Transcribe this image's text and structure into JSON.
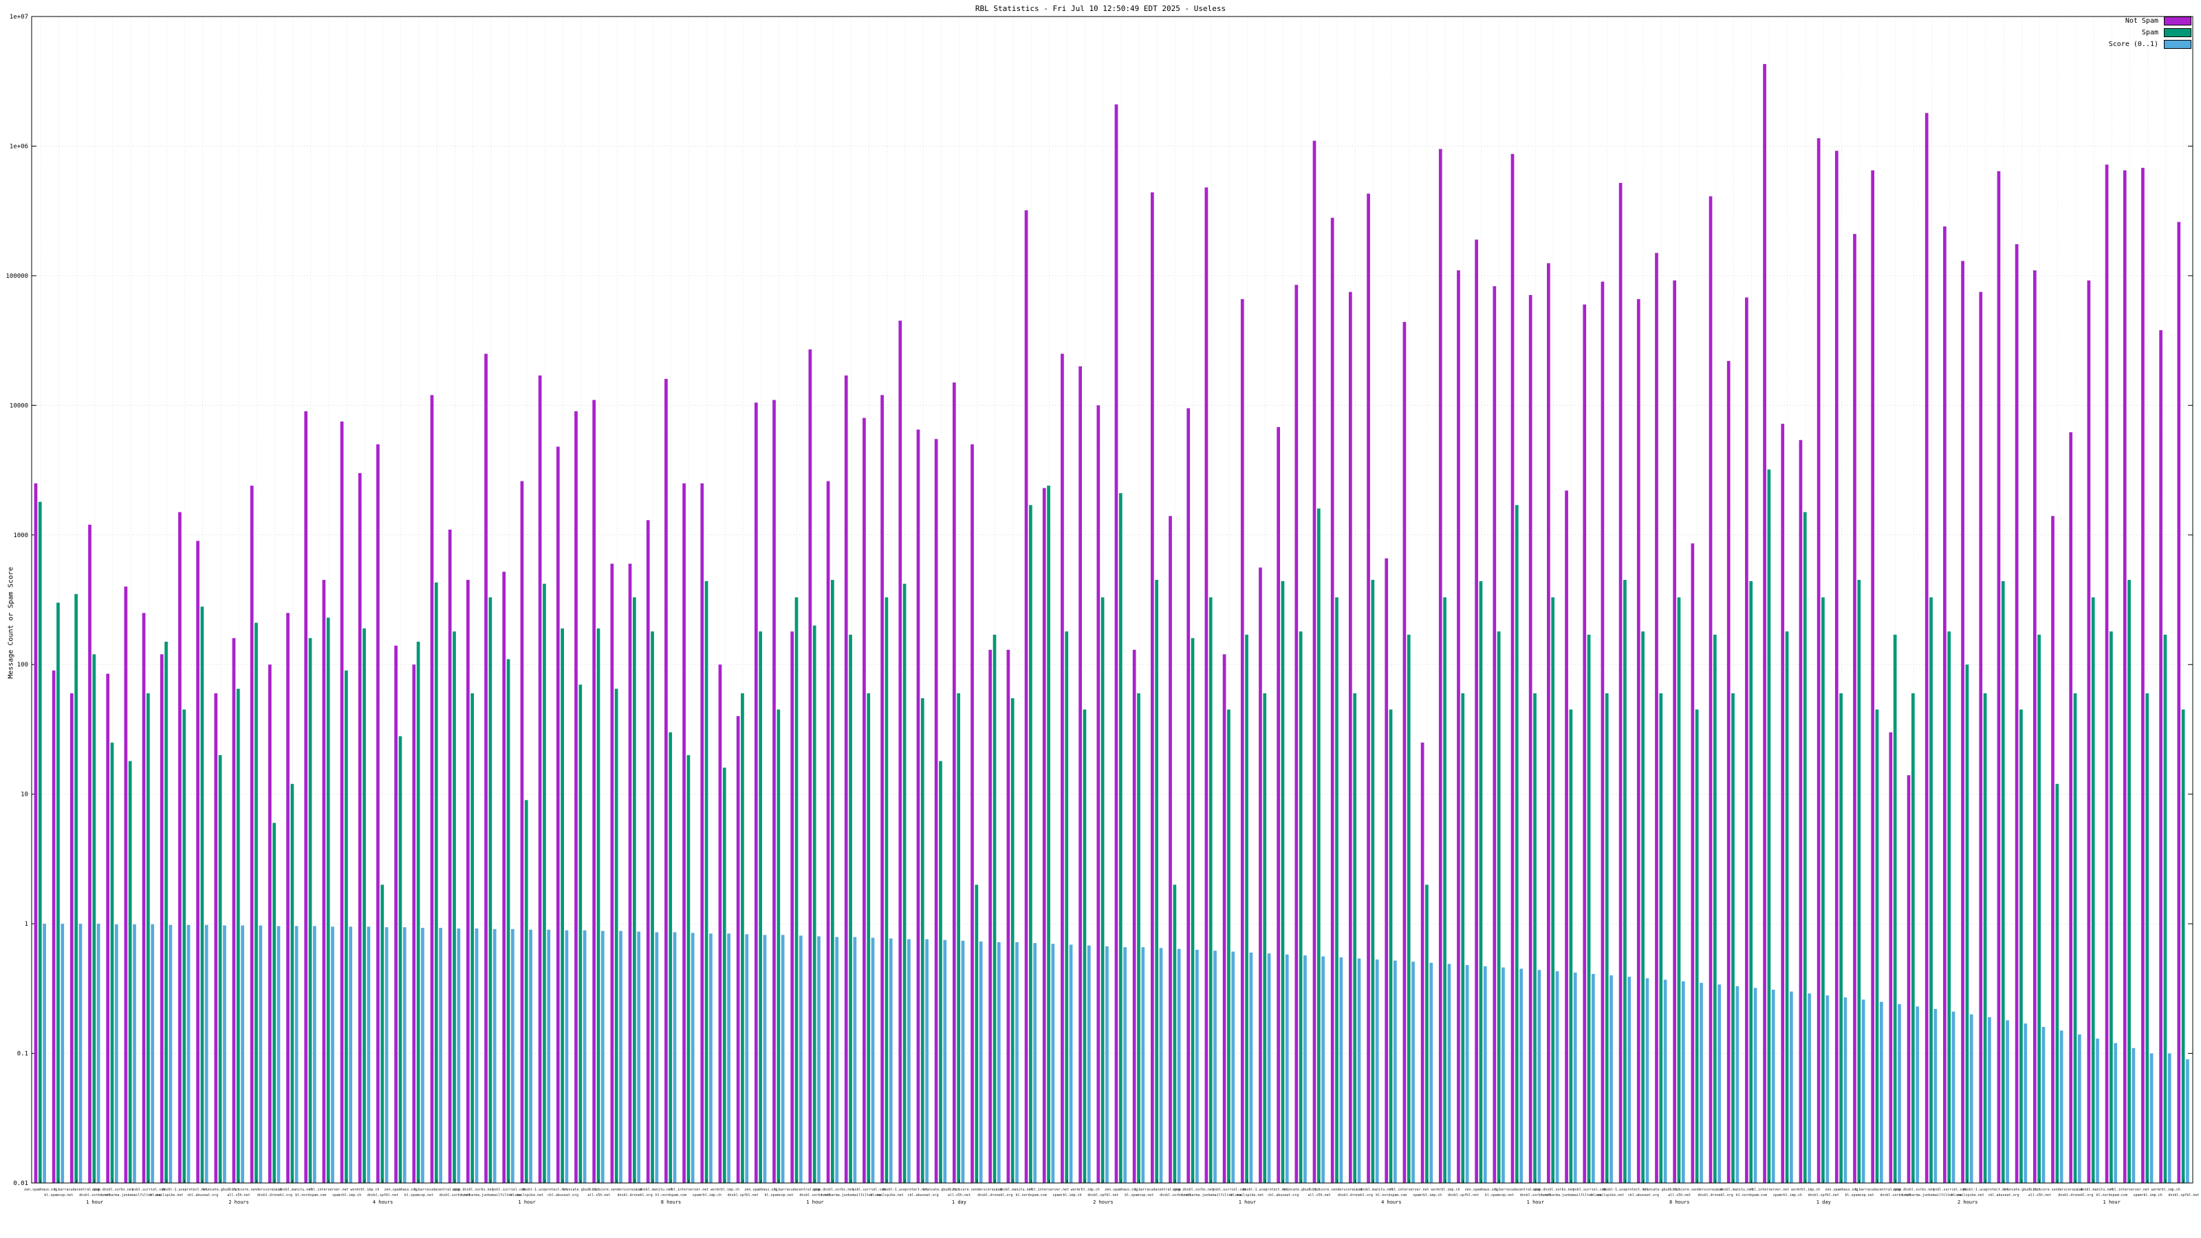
{
  "title": "RBL Statistics - Fri Jul 10 12:50:49 EDT 2025 - Useless",
  "y_axis_label": "Message Count or Spam Score",
  "legend": {
    "items": [
      {
        "label": "Not Spam",
        "color": "#aa22cc"
      },
      {
        "label": "Spam",
        "color": "#009977"
      },
      {
        "label": "Score (0..1)",
        "color": "#55aadd"
      }
    ]
  },
  "chart_data": {
    "type": "bar",
    "yscale": "log",
    "ylim": [
      0.01,
      10000000
    ],
    "ytick_labels": [
      "0.01",
      "0.1",
      "1",
      "10",
      "100",
      "1000",
      "10000",
      "100000",
      "1e+06",
      "1e+07"
    ],
    "grid": true,
    "legend_position": "top-right",
    "categories": [
      "zen.spamhaus.org",
      "bl.spamcop.net",
      "b.barracudacentral.org",
      "dnsbl.sorbs.net",
      "spam.dnsbl.sorbs.net",
      "hostkarma.junkemailfilter.com",
      "psbl.surriel.com",
      "bl.mailspike.net",
      "dnsbl-1.uceprotect.net",
      "cbl.abuseat.org",
      "truncate.gbudb.net",
      "all.s5h.net",
      "bl.score.senderscore.com",
      "dnsbl.dronebl.org",
      "ix.dnsbl.manitu.net",
      "bl.nordspam.com",
      "rbl.interserver.net",
      "spamrbl.imp.ch",
      "wormrbl.imp.ch",
      "dnsbl.spfbl.net",
      "zen.spamhaus.org",
      "bl.spamcop.net",
      "b.barracudacentral.org",
      "dnsbl.sorbs.net",
      "spam.dnsbl.sorbs.net",
      "hostkarma.junkemailfilter.com",
      "psbl.surriel.com",
      "bl.mailspike.net",
      "dnsbl-1.uceprotect.net",
      "cbl.abuseat.org",
      "truncate.gbudb.net",
      "all.s5h.net",
      "bl.score.senderscore.com",
      "dnsbl.dronebl.org",
      "ix.dnsbl.manitu.net",
      "bl.nordspam.com",
      "rbl.interserver.net",
      "spamrbl.imp.ch",
      "wormrbl.imp.ch",
      "dnsbl.spfbl.net",
      "zen.spamhaus.org",
      "bl.spamcop.net",
      "b.barracudacentral.org",
      "dnsbl.sorbs.net",
      "spam.dnsbl.sorbs.net",
      "hostkarma.junkemailfilter.com",
      "psbl.surriel.com",
      "bl.mailspike.net",
      "dnsbl-1.uceprotect.net",
      "cbl.abuseat.org",
      "truncate.gbudb.net",
      "all.s5h.net",
      "bl.score.senderscore.com",
      "dnsbl.dronebl.org",
      "ix.dnsbl.manitu.net",
      "bl.nordspam.com",
      "rbl.interserver.net",
      "spamrbl.imp.ch",
      "wormrbl.imp.ch",
      "dnsbl.spfbl.net",
      "zen.spamhaus.org",
      "bl.spamcop.net",
      "b.barracudacentral.org",
      "dnsbl.sorbs.net",
      "spam.dnsbl.sorbs.net",
      "hostkarma.junkemailfilter.com",
      "psbl.surriel.com",
      "bl.mailspike.net",
      "dnsbl-1.uceprotect.net",
      "cbl.abuseat.org",
      "truncate.gbudb.net",
      "all.s5h.net",
      "bl.score.senderscore.com",
      "dnsbl.dronebl.org",
      "ix.dnsbl.manitu.net",
      "bl.nordspam.com",
      "rbl.interserver.net",
      "spamrbl.imp.ch",
      "wormrbl.imp.ch",
      "dnsbl.spfbl.net",
      "zen.spamhaus.org",
      "bl.spamcop.net",
      "b.barracudacentral.org",
      "dnsbl.sorbs.net",
      "spam.dnsbl.sorbs.net",
      "hostkarma.junkemailfilter.com",
      "psbl.surriel.com",
      "bl.mailspike.net",
      "dnsbl-1.uceprotect.net",
      "cbl.abuseat.org",
      "truncate.gbudb.net",
      "all.s5h.net",
      "bl.score.senderscore.com",
      "dnsbl.dronebl.org",
      "ix.dnsbl.manitu.net",
      "bl.nordspam.com",
      "rbl.interserver.net",
      "spamrbl.imp.ch",
      "wormrbl.imp.ch",
      "dnsbl.spfbl.net",
      "zen.spamhaus.org",
      "bl.spamcop.net",
      "b.barracudacentral.org",
      "dnsbl.sorbs.net",
      "spam.dnsbl.sorbs.net",
      "hostkarma.junkemailfilter.com",
      "psbl.surriel.com",
      "bl.mailspike.net",
      "dnsbl-1.uceprotect.net",
      "cbl.abuseat.org",
      "truncate.gbudb.net",
      "all.s5h.net",
      "bl.score.senderscore.com",
      "dnsbl.dronebl.org",
      "ix.dnsbl.manitu.net",
      "bl.nordspam.com",
      "rbl.interserver.net",
      "spamrbl.imp.ch",
      "wormrbl.imp.ch",
      "dnsbl.spfbl.net"
    ],
    "sublabels": [
      {
        "i": 3,
        "t": "1 hour"
      },
      {
        "i": 11,
        "t": "2 hours"
      },
      {
        "i": 19,
        "t": "4 hours"
      },
      {
        "i": 27,
        "t": "1 hour"
      },
      {
        "i": 35,
        "t": "8 hours"
      },
      {
        "i": 43,
        "t": "1 hour"
      },
      {
        "i": 51,
        "t": "1 day"
      },
      {
        "i": 59,
        "t": "2 hours"
      },
      {
        "i": 67,
        "t": "1 hour"
      },
      {
        "i": 75,
        "t": "4 hours"
      },
      {
        "i": 83,
        "t": "1 hour"
      },
      {
        "i": 91,
        "t": "8 hours"
      },
      {
        "i": 99,
        "t": "1 day"
      },
      {
        "i": 107,
        "t": "2 hours"
      },
      {
        "i": 115,
        "t": "1 hour"
      }
    ],
    "series": [
      {
        "name": "Not Spam",
        "color": "#aa22cc",
        "values": [
          2500,
          90,
          60,
          1200,
          85,
          400,
          250,
          120,
          1500,
          900,
          60,
          160,
          2400,
          100,
          250,
          9000,
          450,
          7500,
          3000,
          5000,
          140,
          100,
          12000,
          1100,
          450,
          25000,
          520,
          2600,
          17000,
          4800,
          9000,
          11000,
          600,
          600,
          1300,
          16000,
          2500,
          2500,
          100,
          40,
          10500,
          11000,
          180,
          27000,
          2600,
          17000,
          8000,
          12000,
          45000,
          6500,
          5500,
          15000,
          5000,
          130,
          130,
          320000,
          2300,
          25000,
          20000,
          10000,
          2100000,
          130,
          440000,
          1400,
          9500,
          480000,
          120,
          66000,
          560,
          6800,
          85000,
          1100000,
          280000,
          75000,
          430000,
          660,
          44000,
          25,
          950000,
          110000,
          190000,
          83000,
          870000,
          71000,
          125000,
          2200,
          60000,
          90000,
          520000,
          66000,
          150000,
          92000,
          860,
          410000,
          22000,
          68000,
          4300000,
          7200,
          5400,
          1150000,
          920000,
          210000,
          650000,
          30,
          14,
          1800000,
          240000,
          130000,
          75000,
          640000,
          175000,
          110000,
          1400,
          6200,
          92000,
          720000,
          650000,
          680000,
          38000,
          260000
        ]
      },
      {
        "name": "Spam",
        "color": "#009977",
        "values": [
          1800,
          300,
          350,
          120,
          25,
          18,
          60,
          150,
          45,
          280,
          20,
          65,
          210,
          6,
          12,
          160,
          230,
          90,
          190,
          2,
          28,
          150,
          430,
          180,
          60,
          330,
          110,
          9,
          420,
          190,
          70,
          190,
          65,
          330,
          180,
          30,
          20,
          440,
          16,
          60,
          180,
          45,
          330,
          200,
          450,
          170,
          60,
          330,
          420,
          55,
          18,
          60,
          2,
          170,
          55,
          1700,
          2400,
          180,
          45,
          330,
          2100,
          60,
          450,
          2,
          160,
          330,
          45,
          170,
          60,
          440,
          180,
          1600,
          330,
          60,
          450,
          45,
          170,
          2,
          330,
          60,
          440,
          180,
          1700,
          60,
          330,
          45,
          170,
          60,
          450,
          180,
          60,
          330,
          45,
          170,
          60,
          440,
          3200,
          180,
          1500,
          330,
          60,
          450,
          45,
          170,
          60,
          330,
          180,
          100,
          60,
          440,
          45,
          170,
          12,
          60,
          330,
          180,
          450,
          60,
          170,
          45
        ]
      },
      {
        "name": "Score (0..1)",
        "color": "#55aadd",
        "values": [
          1.0,
          1.0,
          1.0,
          1.0,
          0.99,
          0.99,
          0.99,
          0.98,
          0.98,
          0.98,
          0.97,
          0.97,
          0.97,
          0.96,
          0.96,
          0.96,
          0.95,
          0.95,
          0.95,
          0.94,
          0.94,
          0.93,
          0.93,
          0.92,
          0.92,
          0.91,
          0.91,
          0.9,
          0.9,
          0.89,
          0.89,
          0.88,
          0.88,
          0.87,
          0.86,
          0.86,
          0.85,
          0.84,
          0.84,
          0.83,
          0.82,
          0.82,
          0.81,
          0.8,
          0.79,
          0.79,
          0.78,
          0.77,
          0.76,
          0.76,
          0.75,
          0.74,
          0.73,
          0.72,
          0.72,
          0.71,
          0.7,
          0.69,
          0.68,
          0.67,
          0.66,
          0.66,
          0.65,
          0.64,
          0.63,
          0.62,
          0.61,
          0.6,
          0.59,
          0.58,
          0.57,
          0.56,
          0.55,
          0.54,
          0.53,
          0.52,
          0.51,
          0.5,
          0.49,
          0.48,
          0.47,
          0.46,
          0.45,
          0.44,
          0.43,
          0.42,
          0.41,
          0.4,
          0.39,
          0.38,
          0.37,
          0.36,
          0.35,
          0.34,
          0.33,
          0.32,
          0.31,
          0.3,
          0.29,
          0.28,
          0.27,
          0.26,
          0.25,
          0.24,
          0.23,
          0.22,
          0.21,
          0.2,
          0.19,
          0.18,
          0.17,
          0.16,
          0.15,
          0.14,
          0.13,
          0.12,
          0.11,
          0.1,
          0.1,
          0.09
        ]
      }
    ]
  }
}
